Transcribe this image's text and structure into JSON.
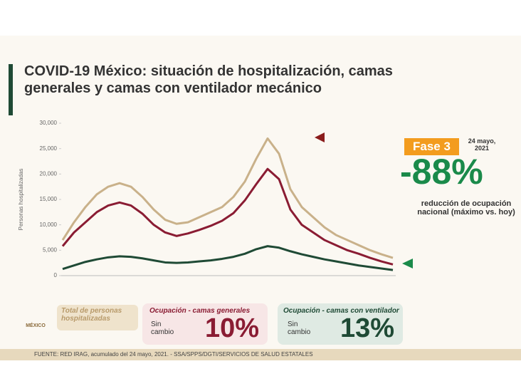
{
  "chart_data": {
    "type": "line",
    "title": "COVID-19 México: situación de hospitalización, camas generales y camas con ventilador mecánico",
    "y_label": "Personas hospitalizadas",
    "categories": [
      null,
      null,
      null,
      null,
      null,
      null,
      null,
      null,
      null,
      null,
      null,
      null,
      null,
      null,
      null,
      null,
      null,
      null,
      null,
      null,
      null,
      null,
      null,
      null,
      null,
      null,
      null,
      null,
      null,
      null
    ],
    "series": [
      {
        "name": "Total de personas hospitalizadas",
        "color": "#c9b18a",
        "values": [
          7000,
          10500,
          13500,
          16000,
          17500,
          18200,
          17500,
          15500,
          13000,
          11000,
          10200,
          10500,
          11500,
          12500,
          13500,
          15500,
          18500,
          23000,
          27000,
          24000,
          17000,
          13500,
          11500,
          9500,
          8000,
          7000,
          6000,
          5000,
          4200,
          3500
        ]
      },
      {
        "name": "Ocupación - camas generales",
        "color": "#8a1c33",
        "values": [
          5800,
          8500,
          10500,
          12500,
          13800,
          14400,
          13800,
          12200,
          10000,
          8500,
          7800,
          8300,
          9000,
          9800,
          10800,
          12300,
          14800,
          18000,
          21000,
          19000,
          13000,
          10000,
          8500,
          7000,
          6000,
          5000,
          4300,
          3500,
          2800,
          2200
        ]
      },
      {
        "name": "Ocupación - camas con ventilador",
        "color": "#1f4a35",
        "values": [
          1300,
          2000,
          2700,
          3200,
          3600,
          3800,
          3700,
          3400,
          3000,
          2600,
          2500,
          2600,
          2800,
          3000,
          3300,
          3700,
          4300,
          5200,
          5800,
          5500,
          4800,
          4200,
          3700,
          3200,
          2800,
          2400,
          2000,
          1700,
          1400,
          1100
        ]
      }
    ],
    "ylim": [
      0,
      30000
    ],
    "yticks": [
      0,
      {
        "value": 5000,
        "label": "5,000"
      },
      {
        "value": 10000,
        "label": "10,000"
      },
      {
        "value": 15000,
        "label": "15,000"
      },
      {
        "value": 20000,
        "label": "20,000"
      },
      {
        "value": 25000,
        "label": "25,000"
      },
      {
        "value": 30000,
        "label": "30,000"
      }
    ],
    "grid": false
  },
  "panel": {
    "phase": "Fase 3",
    "date": "24 mayo, 2021",
    "reduction": "-88%",
    "reduction_note": "reducción de ocupación nacional (máximo vs. hoy)"
  },
  "legend_notes": {
    "general_change": "Sin cambio",
    "general_pct": "10%",
    "ventilator_change": "Sin cambio",
    "ventilator_pct": "13%"
  },
  "logo": "MÉXICO",
  "footer": "FUENTE: RED IRAG, acumulado del 24 mayo, 2021. -  SSA/SPPS/DGTI/SERVICIOS DE SALUD ESTATALES"
}
